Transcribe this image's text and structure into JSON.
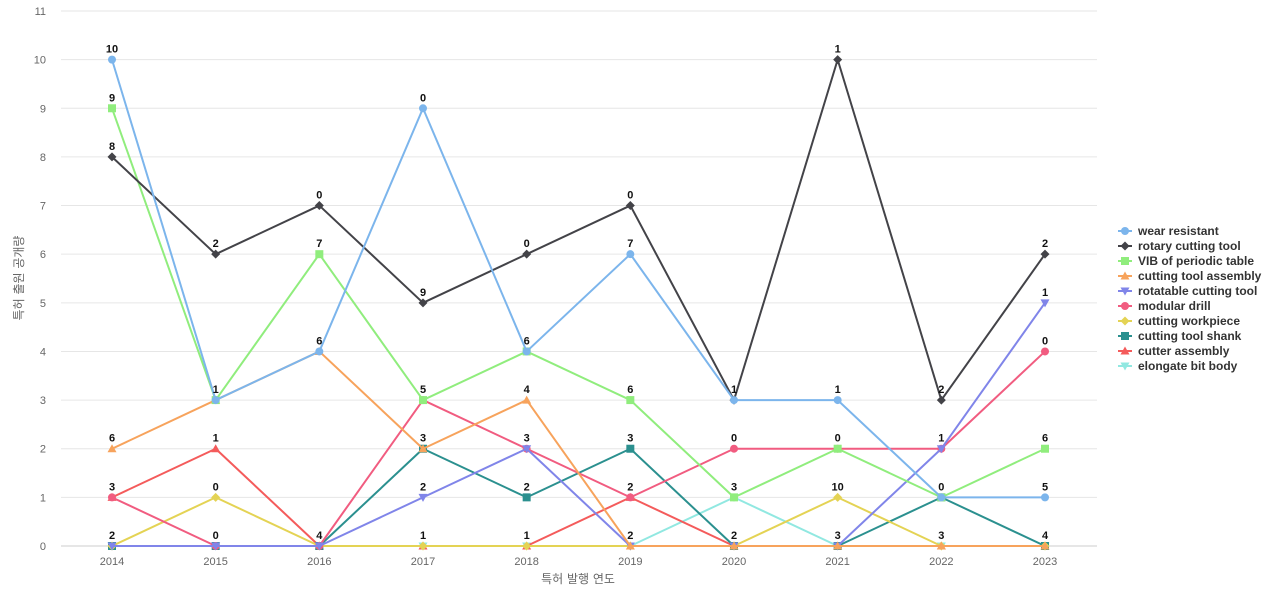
{
  "chart_data": {
    "type": "line",
    "title": "",
    "xlabel": "특허 발행 연도",
    "ylabel": "특허 출원 공개량",
    "ylim": [
      0,
      11
    ],
    "yticks": [
      0,
      1,
      2,
      3,
      4,
      5,
      6,
      7,
      8,
      9,
      10,
      11
    ],
    "x": [
      "2014",
      "2015",
      "2016",
      "2017",
      "2018",
      "2019",
      "2020",
      "2021",
      "2022",
      "2023"
    ],
    "grid": "horizontal",
    "legend_position": "right",
    "series": [
      {
        "name": "wear resistant",
        "color": "#7cb5ec",
        "marker": "circle",
        "values": [
          10,
          3,
          4,
          9,
          4,
          6,
          3,
          3,
          1,
          1
        ]
      },
      {
        "name": "rotary cutting tool",
        "color": "#434348",
        "marker": "diamond",
        "values": [
          8,
          6,
          7,
          5,
          6,
          7,
          3,
          10,
          3,
          6
        ]
      },
      {
        "name": "VIB of periodic table",
        "color": "#90ed7d",
        "marker": "square",
        "values": [
          9,
          3,
          6,
          3,
          4,
          3,
          1,
          2,
          1,
          2
        ]
      },
      {
        "name": "cutting tool assembly",
        "color": "#f7a35c",
        "marker": "triangle",
        "values": [
          2,
          3,
          4,
          2,
          3,
          0,
          0,
          0,
          0,
          0
        ]
      },
      {
        "name": "rotatable cutting tool",
        "color": "#8085e9",
        "marker": "triangle-down",
        "values": [
          0,
          0,
          0,
          1,
          2,
          0,
          0,
          0,
          2,
          5
        ]
      },
      {
        "name": "modular drill",
        "color": "#f15c80",
        "marker": "circle",
        "values": [
          1,
          0,
          0,
          3,
          2,
          1,
          2,
          2,
          2,
          4
        ]
      },
      {
        "name": "cutting workpiece",
        "color": "#e4d354",
        "marker": "diamond",
        "values": [
          0,
          1,
          0,
          0,
          0,
          0,
          0,
          1,
          0,
          0
        ]
      },
      {
        "name": "cutting tool shank",
        "color": "#2b908f",
        "marker": "square",
        "values": [
          0,
          0,
          0,
          2,
          1,
          2,
          0,
          0,
          1,
          0
        ]
      },
      {
        "name": "cutter assembly",
        "color": "#f45b5b",
        "marker": "triangle",
        "values": [
          1,
          2,
          0,
          0,
          0,
          1,
          0,
          0,
          0,
          0
        ]
      },
      {
        "name": "elongate bit body",
        "color": "#91e8e1",
        "marker": "triangle-down",
        "values": [
          0,
          0,
          0,
          0,
          0,
          0,
          1,
          0,
          0,
          0
        ]
      }
    ],
    "data_labels": [
      "10",
      "9",
      "8",
      "6",
      "3",
      "2",
      "2",
      "1",
      "1",
      "0",
      "0",
      "0",
      "7",
      "6",
      "4",
      "0",
      "9",
      "5",
      "3",
      "2",
      "1",
      "0",
      "6",
      "4",
      "3",
      "2",
      "1",
      "0",
      "7",
      "6",
      "3",
      "2",
      "2",
      "1",
      "0",
      "3",
      "2",
      "1",
      "1",
      "0",
      "10",
      "3",
      "2",
      "1",
      "0",
      "3",
      "2",
      "1",
      "0",
      "6",
      "5",
      "4",
      "2",
      "1",
      "0"
    ]
  }
}
